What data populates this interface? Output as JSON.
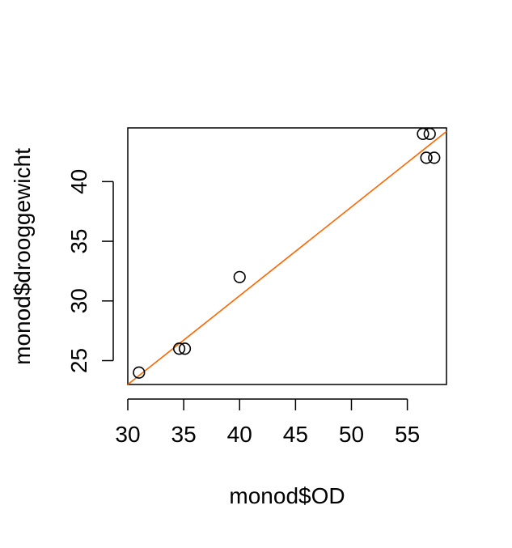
{
  "chart_data": {
    "type": "scatter",
    "title": "",
    "xlabel": "monod$OD",
    "ylabel": "monod$drooggewicht",
    "xlim": [
      30,
      58.5
    ],
    "ylim": [
      23,
      44.5
    ],
    "x_ticks": [
      30,
      35,
      40,
      45,
      50,
      55
    ],
    "y_ticks": [
      25,
      30,
      35,
      40
    ],
    "grid": false,
    "legend": "none",
    "series": [
      {
        "marker": "open-circle",
        "color": "#000000",
        "points": [
          {
            "x": 31.0,
            "y": 24.0
          },
          {
            "x": 34.6,
            "y": 26.0
          },
          {
            "x": 35.1,
            "y": 26.0
          },
          {
            "x": 40.0,
            "y": 32.0
          },
          {
            "x": 56.4,
            "y": 44.0
          },
          {
            "x": 57.0,
            "y": 44.0
          },
          {
            "x": 56.7,
            "y": 42.0
          },
          {
            "x": 57.4,
            "y": 42.0
          }
        ]
      }
    ],
    "fit_line": {
      "color": "#ff6600",
      "from": {
        "x": 30.0,
        "y": 23.0
      },
      "to": {
        "x": 58.5,
        "y": 44.2
      }
    }
  }
}
